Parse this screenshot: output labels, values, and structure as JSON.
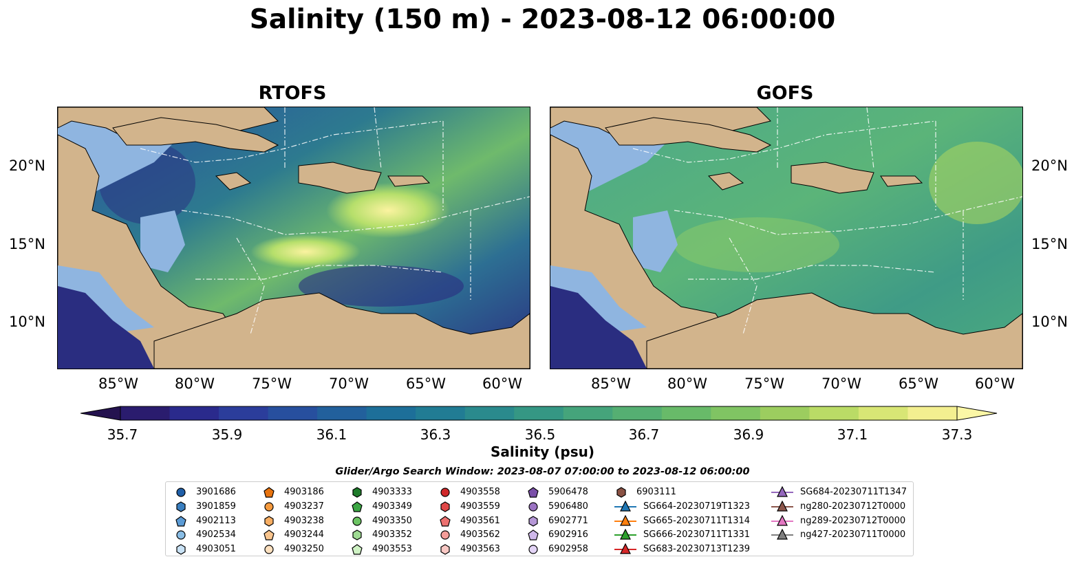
{
  "title": "Salinity (150 m) - 2023-08-12 06:00:00",
  "panels": [
    {
      "title": "RTOFS"
    },
    {
      "title": "GOFS"
    }
  ],
  "lon_labels": [
    "85°W",
    "80°W",
    "75°W",
    "70°W",
    "65°W",
    "60°W"
  ],
  "lat_labels": [
    "20°N",
    "15°N",
    "10°N"
  ],
  "colorbar": {
    "label": "Salinity (psu)",
    "ticks": [
      "35.7",
      "35.9",
      "36.1",
      "36.3",
      "36.5",
      "36.7",
      "36.9",
      "37.1",
      "37.3"
    ]
  },
  "search_window": "Glider/Argo Search Window: 2023-08-07 07:00:00 to 2023-08-12 06:00:00",
  "legend": [
    {
      "label": "3901686",
      "marker": "circle",
      "color": "#1f5fa8"
    },
    {
      "label": "3901859",
      "marker": "hexagon",
      "color": "#3a7fc0"
    },
    {
      "label": "4902113",
      "marker": "pentagon",
      "color": "#5b9bd5"
    },
    {
      "label": "4902534",
      "marker": "circle",
      "color": "#89bde5"
    },
    {
      "label": "4903051",
      "marker": "hexagon",
      "color": "#c9e2f5"
    },
    {
      "label": "4903186",
      "marker": "pentagon",
      "color": "#e8730e"
    },
    {
      "label": "4903237",
      "marker": "circle",
      "color": "#f59a3e"
    },
    {
      "label": "4903238",
      "marker": "hexagon",
      "color": "#f7ae63"
    },
    {
      "label": "4903244",
      "marker": "pentagon",
      "color": "#f9c58e"
    },
    {
      "label": "4903250",
      "marker": "circle",
      "color": "#fde0bf"
    },
    {
      "label": "4903333",
      "marker": "hexagon",
      "color": "#1e7b2a"
    },
    {
      "label": "4903349",
      "marker": "pentagon",
      "color": "#3ca644"
    },
    {
      "label": "4903350",
      "marker": "circle",
      "color": "#6cc463"
    },
    {
      "label": "4903352",
      "marker": "hexagon",
      "color": "#9fdb93"
    },
    {
      "label": "4903553",
      "marker": "pentagon",
      "color": "#cff2c4"
    },
    {
      "label": "4903558",
      "marker": "circle",
      "color": "#d0282a"
    },
    {
      "label": "4903559",
      "marker": "hexagon",
      "color": "#e04848"
    },
    {
      "label": "4903561",
      "marker": "pentagon",
      "color": "#ec7170"
    },
    {
      "label": "4903562",
      "marker": "circle",
      "color": "#f49d99"
    },
    {
      "label": "4903563",
      "marker": "hexagon",
      "color": "#f9c8c4"
    },
    {
      "label": "5906478",
      "marker": "pentagon",
      "color": "#7a4fa8"
    },
    {
      "label": "5906480",
      "marker": "circle",
      "color": "#9b73c2"
    },
    {
      "label": "6902771",
      "marker": "hexagon",
      "color": "#b597d6"
    },
    {
      "label": "6902916",
      "marker": "pentagon",
      "color": "#cfb8ea"
    },
    {
      "label": "6902958",
      "marker": "circle",
      "color": "#e3d4f6"
    },
    {
      "label": "6903111",
      "marker": "hexagon",
      "color": "#8a5244"
    },
    {
      "label": "SG664-20230719T1323",
      "marker": "triangle-line",
      "color": "#1f77b4"
    },
    {
      "label": "SG665-20230711T1314",
      "marker": "triangle-line",
      "color": "#ff7f0e"
    },
    {
      "label": "SG666-20230711T1331",
      "marker": "triangle-line",
      "color": "#2ca02c"
    },
    {
      "label": "SG683-20230713T1239",
      "marker": "triangle-line",
      "color": "#d62728"
    },
    {
      "label": "SG684-20230711T1347",
      "marker": "triangle-line",
      "color": "#9467bd"
    },
    {
      "label": "ng280-20230712T0000",
      "marker": "triangle-line",
      "color": "#8c564b"
    },
    {
      "label": "ng289-20230712T0000",
      "marker": "triangle-line",
      "color": "#e377c2"
    },
    {
      "label": "ng427-20230711T0000",
      "marker": "triangle-line",
      "color": "#7f7f7f"
    }
  ]
}
